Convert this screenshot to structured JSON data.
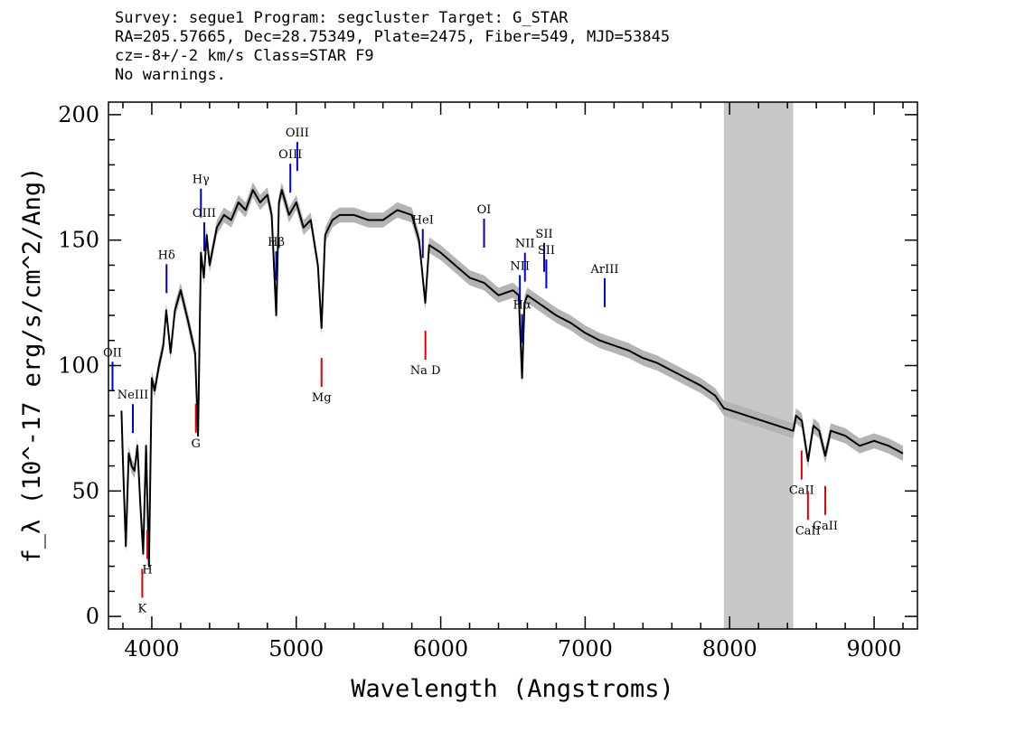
{
  "header": {
    "line1": "Survey: segue1 Program: segcluster Target: G_STAR",
    "line2": "RA=205.57665, Dec=28.75349, Plate=2475, Fiber=549, MJD=53845",
    "line3": "cz=-8+/-2 km/s Class=STAR F9",
    "line4": "No warnings."
  },
  "chart_data": {
    "type": "line",
    "xlabel": "Wavelength (Angstroms)",
    "ylabel": "f_λ (10^-17 erg/s/cm^2/Ang)",
    "xlim": [
      3700,
      9300
    ],
    "ylim": [
      -5,
      205
    ],
    "x_ticks": [
      4000,
      5000,
      6000,
      7000,
      8000,
      9000
    ],
    "y_ticks": [
      0,
      50,
      100,
      150,
      200
    ],
    "masked_region": [
      7960,
      8440
    ],
    "colors": {
      "spectrum": "#000000",
      "error_band": "#b4b4b4",
      "mask": "#c8c8c8",
      "emission": "#0000cc",
      "absorption": "#dd0000"
    },
    "series": [
      {
        "x": [
          3790,
          3800,
          3820,
          3840,
          3860,
          3880,
          3900,
          3920,
          3940,
          3960,
          3980,
          4000,
          4020,
          4050,
          4080,
          4100,
          4130,
          4160,
          4200,
          4250,
          4300,
          4320,
          4340,
          4360,
          4380,
          4400,
          4450,
          4500,
          4550,
          4600,
          4650,
          4700,
          4750,
          4800,
          4830,
          4861,
          4880,
          4900,
          4950,
          5000,
          5050,
          5100,
          5150,
          5175,
          5200,
          5250,
          5300,
          5400,
          5500,
          5600,
          5700,
          5800,
          5850,
          5893,
          5920,
          6000,
          6100,
          6200,
          6300,
          6400,
          6500,
          6540,
          6563,
          6580,
          6600,
          6700,
          6800,
          6900,
          7000,
          7100,
          7200,
          7300,
          7400,
          7500,
          7600,
          7700,
          7800,
          7900,
          7960,
          8440,
          8460,
          8500,
          8542,
          8580,
          8620,
          8662,
          8700,
          8800,
          8900,
          9000,
          9100,
          9200
        ],
        "values": [
          82,
          62,
          28,
          65,
          60,
          58,
          68,
          45,
          25,
          68,
          20,
          95,
          90,
          100,
          108,
          122,
          105,
          122,
          130,
          118,
          105,
          72,
          145,
          135,
          152,
          140,
          155,
          160,
          158,
          165,
          162,
          170,
          165,
          168,
          160,
          120,
          165,
          170,
          160,
          165,
          155,
          158,
          140,
          115,
          152,
          158,
          160,
          160,
          158,
          158,
          162,
          160,
          150,
          125,
          148,
          145,
          140,
          135,
          133,
          128,
          130,
          128,
          95,
          125,
          128,
          124,
          120,
          117,
          113,
          110,
          108,
          106,
          103,
          101,
          98,
          95,
          92,
          88,
          83,
          74,
          80,
          78,
          62,
          76,
          74,
          64,
          74,
          72,
          68,
          70,
          68,
          65
        ]
      }
    ],
    "emission_lines": [
      {
        "label": "OII",
        "x": 3728
      },
      {
        "label": "NeIII",
        "x": 3869
      },
      {
        "label": "Hδ",
        "x": 4102
      },
      {
        "label": "Hγ",
        "x": 4340
      },
      {
        "label": "OIII",
        "x": 4363
      },
      {
        "label": "Hβ",
        "x": 4861
      },
      {
        "label": "OIII",
        "x": 4959
      },
      {
        "label": "OIII",
        "x": 5007
      },
      {
        "label": "HeI",
        "x": 5876
      },
      {
        "label": "OI",
        "x": 6300
      },
      {
        "label": "NII",
        "x": 6548
      },
      {
        "label": "Hα",
        "x": 6563
      },
      {
        "label": "NII",
        "x": 6583
      },
      {
        "label": "SII",
        "x": 6716
      },
      {
        "label": "SII",
        "x": 6731
      },
      {
        "label": "ArIII",
        "x": 7135
      }
    ],
    "absorption_lines": [
      {
        "label": "K",
        "x": 3934
      },
      {
        "label": "H",
        "x": 3969
      },
      {
        "label": "G",
        "x": 4305
      },
      {
        "label": "Mg",
        "x": 5175
      },
      {
        "label": "Na D",
        "x": 5894
      },
      {
        "label": "CaII",
        "x": 8498
      },
      {
        "label": "CaII",
        "x": 8542
      },
      {
        "label": "CaII",
        "x": 8662
      }
    ]
  }
}
